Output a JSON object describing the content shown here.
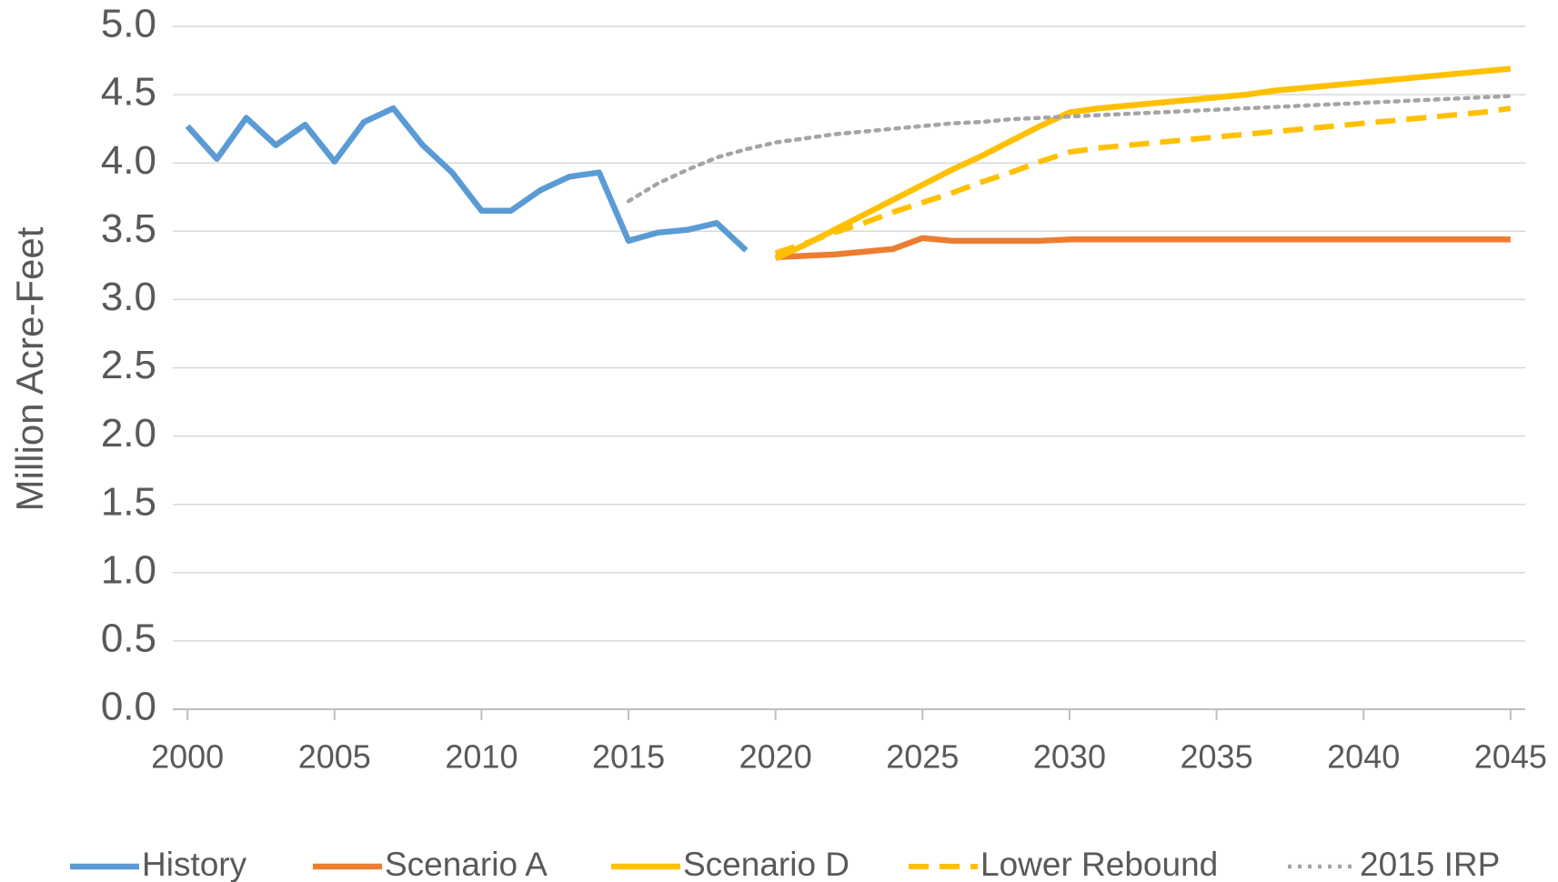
{
  "chart_data": {
    "type": "line",
    "y_label": "Million Acre-Feet",
    "x": [
      2000,
      2001,
      2002,
      2003,
      2004,
      2005,
      2006,
      2007,
      2008,
      2009,
      2010,
      2011,
      2012,
      2013,
      2014,
      2015,
      2016,
      2017,
      2018,
      2019,
      2020,
      2021,
      2022,
      2023,
      2024,
      2025,
      2026,
      2027,
      2028,
      2029,
      2030,
      2031,
      2032,
      2033,
      2034,
      2035,
      2036,
      2037,
      2038,
      2039,
      2040,
      2041,
      2042,
      2043,
      2044,
      2045
    ],
    "series": [
      {
        "name": "History",
        "color": "#5b9bd5",
        "style": "solid",
        "values": [
          4.27,
          4.03,
          4.33,
          4.13,
          4.28,
          4.01,
          4.3,
          4.4,
          4.13,
          3.93,
          3.65,
          3.65,
          3.8,
          3.9,
          3.93,
          3.43,
          3.49,
          3.51,
          3.56,
          3.36,
          null,
          null,
          null,
          null,
          null,
          null,
          null,
          null,
          null,
          null,
          null,
          null,
          null,
          null,
          null,
          null,
          null,
          null,
          null,
          null,
          null,
          null,
          null,
          null,
          null,
          null
        ]
      },
      {
        "name": "Scenario A",
        "color": "#ed7d31",
        "style": "solid",
        "values": [
          null,
          null,
          null,
          null,
          null,
          null,
          null,
          null,
          null,
          null,
          null,
          null,
          null,
          null,
          null,
          null,
          null,
          null,
          null,
          null,
          3.31,
          3.32,
          3.33,
          3.35,
          3.37,
          3.45,
          3.43,
          3.43,
          3.43,
          3.43,
          3.44,
          3.44,
          3.44,
          3.44,
          3.44,
          3.44,
          3.44,
          3.44,
          3.44,
          3.44,
          3.44,
          3.44,
          3.44,
          3.44,
          3.44,
          3.44
        ]
      },
      {
        "name": "Scenario D",
        "color": "#ffc000",
        "style": "solid",
        "values": [
          null,
          null,
          null,
          null,
          null,
          null,
          null,
          null,
          null,
          null,
          null,
          null,
          null,
          null,
          null,
          null,
          null,
          null,
          null,
          null,
          3.3,
          3.4,
          3.51,
          3.62,
          3.73,
          3.84,
          3.95,
          4.05,
          4.16,
          4.27,
          4.37,
          4.4,
          4.42,
          4.44,
          4.46,
          4.48,
          4.5,
          4.53,
          4.55,
          4.57,
          4.59,
          4.61,
          4.63,
          4.65,
          4.67,
          4.69
        ]
      },
      {
        "name": "Lower Rebound",
        "color": "#ffc000",
        "style": "dashed",
        "values": [
          null,
          null,
          null,
          null,
          null,
          null,
          null,
          null,
          null,
          null,
          null,
          null,
          null,
          null,
          null,
          null,
          null,
          null,
          null,
          null,
          3.34,
          3.41,
          3.49,
          3.56,
          3.64,
          3.71,
          3.78,
          3.86,
          3.93,
          4.01,
          4.08,
          4.11,
          4.13,
          4.15,
          4.17,
          4.19,
          4.21,
          4.23,
          4.25,
          4.27,
          4.29,
          4.31,
          4.33,
          4.35,
          4.37,
          4.4
        ]
      },
      {
        "name": "2015 IRP",
        "color": "#a5a5a5",
        "style": "dotted",
        "values": [
          null,
          null,
          null,
          null,
          null,
          null,
          null,
          null,
          null,
          null,
          null,
          null,
          null,
          null,
          null,
          3.72,
          3.85,
          3.95,
          4.04,
          4.1,
          4.15,
          4.18,
          4.21,
          4.23,
          4.25,
          4.27,
          4.29,
          4.3,
          4.32,
          4.33,
          4.34,
          4.35,
          4.36,
          4.37,
          4.38,
          4.39,
          4.4,
          4.41,
          4.42,
          4.43,
          4.44,
          4.45,
          4.46,
          4.47,
          4.48,
          4.49
        ]
      }
    ],
    "xlim": [
      1999.5,
      2045.5
    ],
    "xticks": [
      2000,
      2005,
      2010,
      2015,
      2020,
      2025,
      2030,
      2035,
      2040,
      2045
    ],
    "ylim": [
      0,
      5
    ],
    "yticks": [
      {
        "value": 0,
        "label": "0.0"
      },
      0.5,
      {
        "value": 1,
        "label": "1.0"
      },
      1.5,
      {
        "value": 2,
        "label": "2.0"
      },
      2.5,
      {
        "value": 3,
        "label": "3.0"
      },
      3.5,
      {
        "value": 4,
        "label": "4.0"
      },
      4.5,
      {
        "value": 5,
        "label": "5.0"
      }
    ],
    "grid": true,
    "legend": "bottom"
  }
}
